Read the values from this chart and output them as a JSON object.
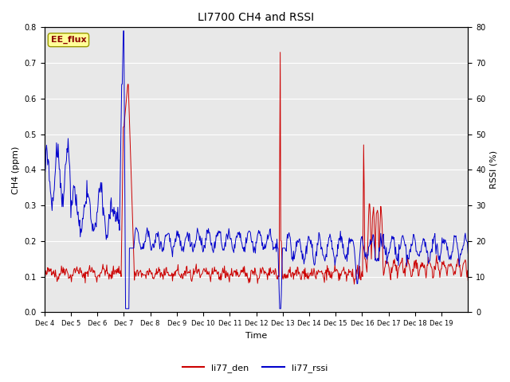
{
  "title": "LI7700 CH4 and RSSI",
  "xlabel": "Time",
  "ylabel_left": "CH4 (ppm)",
  "ylabel_right": "RSSI (%)",
  "text_label": "EE_flux",
  "legend_labels": [
    "li77_den",
    "li77_rssi"
  ],
  "ch4_color": "#cc0000",
  "rssi_color": "#0000cc",
  "ylim_left": [
    0.0,
    0.8
  ],
  "ylim_right": [
    0,
    80
  ],
  "background_color": "#e8e8e8",
  "fig_background": "#ffffff",
  "title_fontsize": 10,
  "axis_fontsize": 8,
  "tick_fontsize": 7,
  "x_tick_labels": [
    "Dec 4",
    "Dec 5",
    "Dec 6",
    "Dec 7",
    "Dec 8",
    "Dec 9",
    "Dec 10",
    "Dec 11",
    "Dec 12",
    "Dec 13",
    "Dec 14",
    "Dec 15",
    "Dec 16",
    "Dec 17",
    "Dec 18",
    "Dec 19"
  ]
}
